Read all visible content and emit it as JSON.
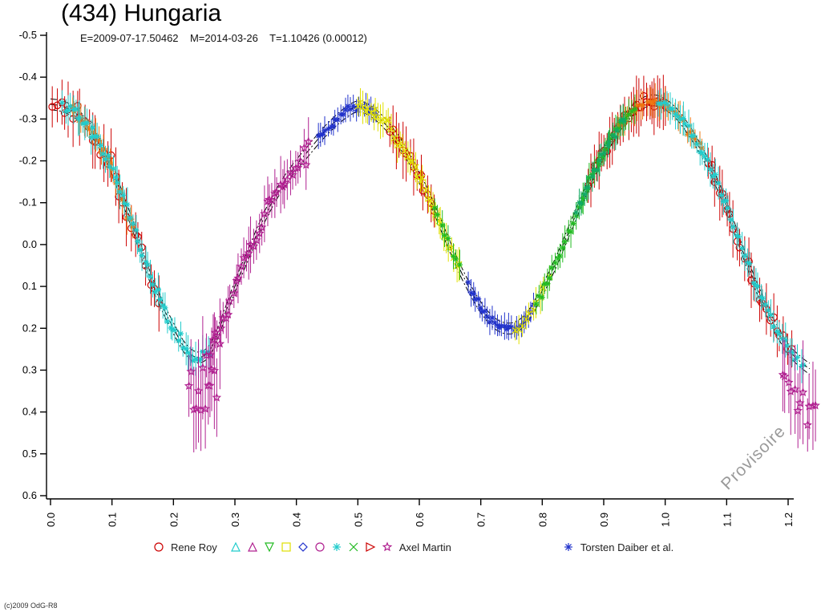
{
  "title": "(434) Hungaria",
  "subtitle": "E=2009-07-17.50462    M=2014-03-26    T=1.10426 (0.00012)",
  "watermark": "Provisoire",
  "copyright": "(c)2009 OdG-R8",
  "legend": {
    "items": [
      {
        "type": "symbol",
        "shape": "circle",
        "color": "#cc0000"
      },
      {
        "type": "label",
        "text": "Rene Roy"
      },
      {
        "type": "symbol",
        "shape": "triangle-up",
        "color": "#22cccc"
      },
      {
        "type": "symbol",
        "shape": "triangle-up",
        "color": "#b02090"
      },
      {
        "type": "symbol",
        "shape": "triangle-down",
        "color": "#22bb22"
      },
      {
        "type": "symbol",
        "shape": "square",
        "color": "#e0e000"
      },
      {
        "type": "symbol",
        "shape": "diamond",
        "color": "#2233cc"
      },
      {
        "type": "symbol",
        "shape": "circle",
        "color": "#b02090"
      },
      {
        "type": "symbol",
        "shape": "asterisk",
        "color": "#22cccc"
      },
      {
        "type": "symbol",
        "shape": "x",
        "color": "#22bb22"
      },
      {
        "type": "symbol",
        "shape": "triangle-right",
        "color": "#cc0000"
      },
      {
        "type": "symbol",
        "shape": "star",
        "color": "#b02090"
      },
      {
        "type": "label",
        "text": "Axel Martin"
      },
      {
        "type": "gap",
        "width": 118
      },
      {
        "type": "symbol",
        "shape": "asterisk",
        "color": "#2233cc"
      },
      {
        "type": "label",
        "text": "Torsten Daiber et al."
      }
    ]
  },
  "chart_data": {
    "type": "scatter",
    "title": "(434) Hungaria",
    "subtitle": "E=2009-07-17.50462    M=2014-03-26    T=1.10426 (0.00012)",
    "xlabel": "",
    "ylabel": "",
    "xlim": [
      0.0,
      1.25
    ],
    "ylim": [
      0.6,
      -0.5
    ],
    "grid": false,
    "legend_position": "bottom",
    "xticks": [
      "0.0",
      "0.1",
      "0.2",
      "0.3",
      "0.4",
      "0.5",
      "0.6",
      "0.7",
      "0.8",
      "0.9",
      "1.0",
      "1.1",
      "1.2"
    ],
    "yticks": [
      "-0.5",
      "-0.4",
      "-0.3",
      "-0.2",
      "-0.1",
      "0.0",
      "0.1",
      "0.2",
      "0.3",
      "0.4",
      "0.5",
      "0.6"
    ],
    "model_offsets": [
      -0.013,
      0,
      0.013
    ],
    "model_curve": {
      "x": [
        0.0,
        0.02,
        0.04,
        0.06,
        0.08,
        0.1,
        0.12,
        0.14,
        0.16,
        0.18,
        0.2,
        0.22,
        0.24,
        0.26,
        0.28,
        0.3,
        0.32,
        0.34,
        0.36,
        0.38,
        0.4,
        0.42,
        0.44,
        0.46,
        0.48,
        0.5,
        0.52,
        0.54,
        0.56,
        0.58,
        0.6,
        0.62,
        0.64,
        0.66,
        0.68,
        0.7,
        0.72,
        0.74,
        0.76,
        0.78,
        0.8,
        0.82,
        0.84,
        0.86,
        0.88,
        0.9,
        0.92,
        0.94,
        0.96,
        0.98,
        1.0,
        1.02,
        1.04,
        1.06,
        1.08,
        1.1,
        1.12,
        1.14,
        1.16,
        1.18,
        1.2,
        1.22,
        1.24
      ],
      "y": [
        -0.335,
        -0.33,
        -0.315,
        -0.285,
        -0.24,
        -0.18,
        -0.1,
        -0.02,
        0.07,
        0.14,
        0.2,
        0.25,
        0.27,
        0.25,
        0.18,
        0.1,
        0.03,
        -0.04,
        -0.1,
        -0.15,
        -0.19,
        -0.225,
        -0.26,
        -0.29,
        -0.315,
        -0.33,
        -0.32,
        -0.295,
        -0.26,
        -0.215,
        -0.16,
        -0.1,
        -0.03,
        0.04,
        0.1,
        0.15,
        0.185,
        0.2,
        0.195,
        0.165,
        0.11,
        0.05,
        -0.02,
        -0.09,
        -0.16,
        -0.22,
        -0.27,
        -0.31,
        -0.335,
        -0.345,
        -0.335,
        -0.31,
        -0.27,
        -0.22,
        -0.16,
        -0.09,
        -0.01,
        0.07,
        0.14,
        0.2,
        0.25,
        0.28,
        0.3
      ]
    },
    "series": [
      {
        "name": "Rene Roy",
        "color": "#cc0000",
        "symbol": "circle",
        "size": 4.2,
        "err": 0.05,
        "segments": [
          {
            "x0": 0.005,
            "x1": 0.175,
            "n": 28,
            "jitter": 0.035
          },
          {
            "x0": 0.55,
            "x1": 0.625,
            "n": 14,
            "jitter": 0.02
          },
          {
            "x0": 0.875,
            "x1": 1.0,
            "n": 30,
            "jitter": 0.022
          },
          {
            "x0": 1.07,
            "x1": 1.205,
            "n": 24,
            "jitter": 0.035
          }
        ]
      },
      {
        "name": "observer-orange",
        "color": "#ee7711",
        "symbol": "asterisk",
        "size": 3.6,
        "err": 0.03,
        "segments": [
          {
            "x0": 0.035,
            "x1": 0.135,
            "n": 22,
            "jitter": 0.022
          },
          {
            "x0": 0.925,
            "x1": 1.06,
            "n": 28,
            "jitter": 0.02
          }
        ]
      },
      {
        "name": "observer-cyan",
        "color": "#22cccc",
        "symbol": "asterisk",
        "size": 3.6,
        "err": 0.03,
        "segments": [
          {
            "x0": 0.02,
            "x1": 0.26,
            "n": 60,
            "jitter": 0.022
          },
          {
            "x0": 0.99,
            "x1": 1.225,
            "n": 55,
            "jitter": 0.022
          }
        ]
      },
      {
        "name": "Axel Martin",
        "color": "#b02090",
        "symbol": "star",
        "size": 4.5,
        "err": 0.05,
        "segments": [
          {
            "x0": 0.225,
            "x1": 0.275,
            "n": 14,
            "jitter": 0.06,
            "yoff": 0.1,
            "err": 0.1
          },
          {
            "x0": 0.255,
            "x1": 0.42,
            "n": 40,
            "jitter": 0.035
          },
          {
            "x0": 1.19,
            "x1": 1.245,
            "n": 12,
            "jitter": 0.05,
            "yoff": 0.08,
            "err": 0.09
          }
        ]
      },
      {
        "name": "Torsten Daiber et al.",
        "color": "#2233cc",
        "symbol": "asterisk",
        "size": 3.6,
        "err": 0.025,
        "segments": [
          {
            "x0": 0.435,
            "x1": 0.53,
            "n": 24,
            "jitter": 0.016
          },
          {
            "x0": 0.68,
            "x1": 0.785,
            "n": 28,
            "jitter": 0.016
          }
        ]
      },
      {
        "name": "observer-yellow",
        "color": "#e0e000",
        "symbol": "x",
        "size": 3.6,
        "err": 0.03,
        "segments": [
          {
            "x0": 0.5,
            "x1": 0.665,
            "n": 40,
            "jitter": 0.02
          },
          {
            "x0": 0.755,
            "x1": 0.81,
            "n": 10,
            "jitter": 0.02
          }
        ]
      },
      {
        "name": "observer-green",
        "color": "#22bb22",
        "symbol": "asterisk",
        "size": 3.6,
        "err": 0.03,
        "segments": [
          {
            "x0": 0.625,
            "x1": 0.665,
            "n": 8,
            "jitter": 0.02
          },
          {
            "x0": 0.79,
            "x1": 0.95,
            "n": 38,
            "jitter": 0.02
          }
        ]
      },
      {
        "name": "observer-seagreen",
        "color": "#11aa66",
        "symbol": "asterisk",
        "size": 3.6,
        "err": 0.028,
        "segments": [
          {
            "x0": 0.855,
            "x1": 0.935,
            "n": 20,
            "jitter": 0.018
          }
        ]
      }
    ]
  }
}
